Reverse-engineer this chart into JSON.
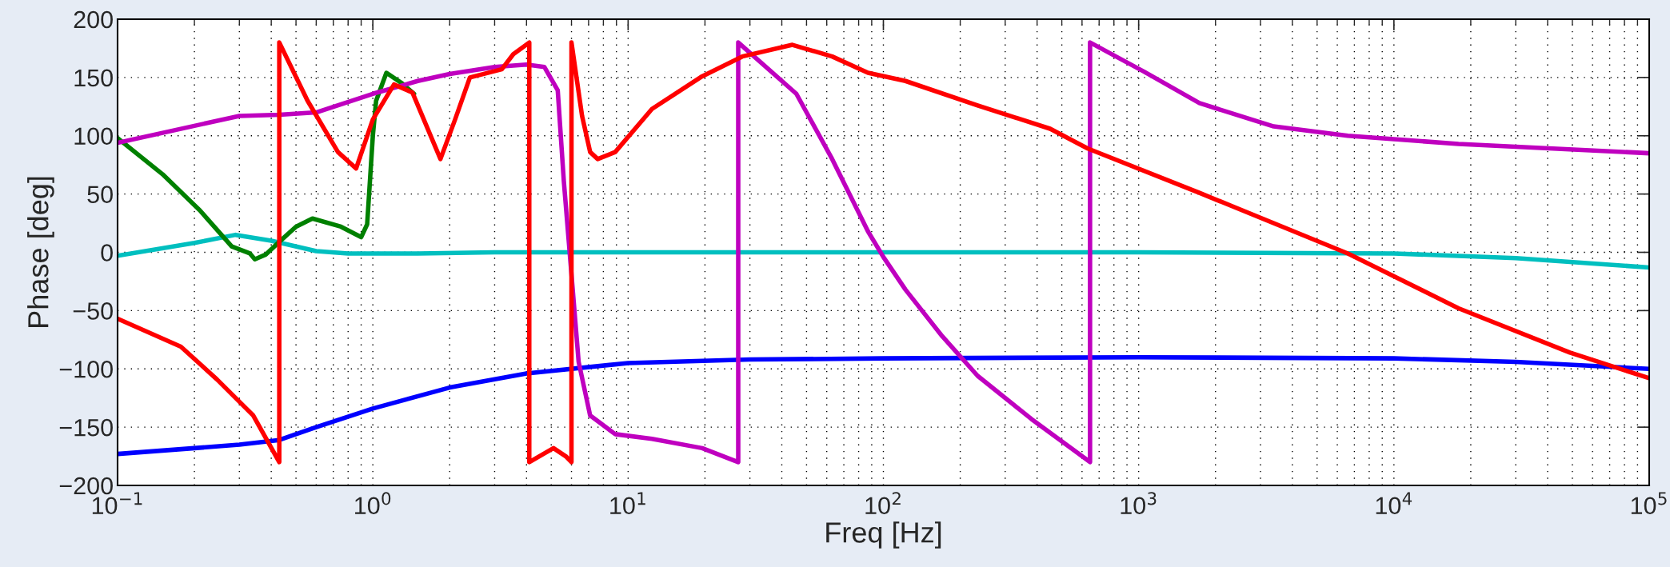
{
  "chart_data": {
    "type": "line",
    "xlabel": "Freq [Hz]",
    "ylabel": "Phase [deg]",
    "log": "x",
    "grid": true,
    "legend": false,
    "line_style": "solid",
    "marker": "none",
    "xlim": [
      0.1,
      100000
    ],
    "ylim": [
      -200,
      200
    ],
    "xticks": [
      {
        "value": 0.1,
        "label": "10$^{−1}$"
      },
      {
        "value": 1,
        "label": "10$^{0}$"
      },
      {
        "value": 10,
        "label": "10$^{1}$"
      },
      {
        "value": 100,
        "label": "10$^{2}$"
      },
      {
        "value": 1000,
        "label": "10$^{3}$"
      },
      {
        "value": 10000,
        "label": "10$^{4}$"
      },
      {
        "value": 100000,
        "label": "10$^{5}$"
      }
    ],
    "yticks": [
      {
        "value": -200,
        "label": "−200"
      },
      {
        "value": -150,
        "label": "−150"
      },
      {
        "value": -100,
        "label": "−100"
      },
      {
        "value": -50,
        "label": "−50"
      },
      0,
      50,
      100,
      150,
      200
    ],
    "series": [
      {
        "color": "#0000ff",
        "x": [
          0.1,
          0.2,
          0.3,
          0.43,
          0.6,
          1,
          2,
          4,
          10,
          30,
          100,
          1000,
          10000,
          30000,
          100000
        ],
        "values": [
          -173,
          -168,
          -165,
          -161,
          -150,
          -134,
          -116,
          -104,
          -95,
          -92,
          -91,
          -90,
          -91,
          -94,
          -100
        ]
      },
      {
        "color": "#00bfbf",
        "x": [
          0.1,
          0.2,
          0.29,
          0.4,
          0.6,
          0.8,
          1.5,
          3,
          1000,
          10000,
          30000,
          100000
        ],
        "values": [
          -3,
          8,
          15,
          10,
          1,
          -1,
          -1,
          0,
          0,
          -1,
          -5,
          -13
        ]
      },
      {
        "color": "#008000",
        "x": [
          0.1,
          0.15,
          0.21,
          0.28,
          0.33,
          0.345,
          0.38,
          0.43,
          0.5,
          0.58,
          0.75,
          0.9,
          0.95,
          1.0,
          1.03,
          1.13,
          1.3,
          1.45
        ],
        "values": [
          98,
          67,
          36,
          5,
          -1,
          -6,
          -2,
          9,
          22,
          29,
          22,
          13,
          24,
          100,
          130,
          154,
          145,
          136
        ]
      },
      {
        "color": "#bf00bf",
        "x": [
          0.1,
          0.3,
          0.43,
          0.6,
          1.0,
          1.5,
          2,
          3,
          4,
          4.7,
          5.3,
          5.6,
          6.0,
          6.4,
          7.1,
          8.9,
          12.4,
          19.5,
          27,
          27,
          45.6,
          63,
          87,
          100,
          122,
          170,
          234,
          380,
          645,
          645,
          1050,
          1730,
          3380,
          6600,
          17900,
          100000
        ],
        "values": [
          94,
          117,
          118,
          120,
          136,
          147,
          153,
          159,
          161,
          159,
          139,
          61,
          -19,
          -94,
          -140,
          -156,
          -160,
          -168,
          -180,
          180,
          136,
          80,
          18,
          -4,
          -32,
          -72,
          -106,
          -143,
          -180,
          180,
          155,
          128,
          108,
          100,
          93,
          85
        ]
      },
      {
        "color": "#ff0000",
        "x": [
          0.1,
          0.177,
          0.245,
          0.34,
          0.43,
          0.43,
          0.555,
          0.73,
          0.86,
          1.0,
          1.21,
          1.43,
          1.84,
          2.1,
          2.4,
          3.2,
          3.55,
          4.1,
          4.1,
          5.1,
          5.7,
          6.0,
          6.0,
          6.6,
          7.1,
          7.6,
          8.9,
          12.4,
          19.5,
          28,
          44,
          63,
          87,
          122,
          234,
          450,
          632,
          1730,
          6600,
          17900,
          48900,
          100000
        ],
        "values": [
          -57,
          -81,
          -109,
          -140,
          -180,
          180,
          130,
          86,
          72,
          114,
          144,
          137,
          80,
          114,
          150,
          157,
          170,
          180,
          -180,
          -168,
          -175,
          -180,
          180,
          117,
          86,
          80,
          86,
          123,
          151,
          168,
          178,
          168,
          154,
          147,
          126,
          106,
          89,
          51,
          -1,
          -48,
          -86,
          -108
        ]
      }
    ]
  }
}
